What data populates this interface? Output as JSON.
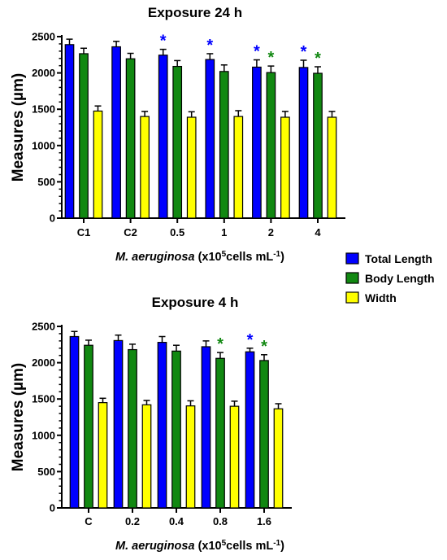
{
  "figure": {
    "legend": {
      "position": "right",
      "entries": [
        {
          "label": "Total Length",
          "color": "#0000ff"
        },
        {
          "label": "Body Length",
          "color": "#118811"
        },
        {
          "label": "Width",
          "color": "#ffff00"
        }
      ]
    }
  },
  "chart_data": [
    {
      "type": "bar",
      "title": "Exposure 24 h",
      "ylabel": "Measures (µm)",
      "xlabel_italic": "M. aeruginosa",
      "xlabel_rest": " (x10",
      "xlabel_sup1": "5",
      "xlabel_mid": "cells mL",
      "xlabel_sup2": "-1",
      "xlabel_end": ")",
      "ylim": [
        0,
        2500
      ],
      "yticks": [
        "0",
        "500",
        "1000",
        "1500",
        "2000",
        "2500"
      ],
      "categories": [
        "C1",
        "C2",
        "0.5",
        "1",
        "2",
        "4"
      ],
      "series": [
        {
          "name": "Total Length",
          "color": "#0000ff",
          "values": [
            2390,
            2360,
            2245,
            2185,
            2080,
            2075
          ],
          "errors": [
            75,
            75,
            80,
            80,
            100,
            100
          ]
        },
        {
          "name": "Body Length",
          "color": "#118811",
          "values": [
            2265,
            2195,
            2090,
            2020,
            2005,
            1995
          ],
          "errors": [
            75,
            75,
            80,
            90,
            90,
            90
          ]
        },
        {
          "name": "Width",
          "color": "#ffff00",
          "values": [
            1475,
            1400,
            1390,
            1400,
            1390,
            1390
          ],
          "errors": [
            70,
            70,
            75,
            80,
            80,
            80
          ]
        }
      ],
      "significance": [
        {
          "category": "0.5",
          "series": "Total Length",
          "symbol": "*"
        },
        {
          "category": "1",
          "series": "Total Length",
          "symbol": "*"
        },
        {
          "category": "2",
          "series": "Total Length",
          "symbol": "*"
        },
        {
          "category": "2",
          "series": "Body Length",
          "symbol": "*"
        },
        {
          "category": "4",
          "series": "Total Length",
          "symbol": "*"
        },
        {
          "category": "4",
          "series": "Body Length",
          "symbol": "*"
        }
      ]
    },
    {
      "type": "bar",
      "title": "Exposure 4 h",
      "ylabel": "Measures (µm)",
      "xlabel_italic": "M. aeruginosa",
      "xlabel_rest": " (x10",
      "xlabel_sup1": "5",
      "xlabel_mid": "cells mL",
      "xlabel_sup2": "-1",
      "xlabel_end": ")",
      "ylim": [
        0,
        2500
      ],
      "yticks": [
        "0",
        "500",
        "1000",
        "1500",
        "2000",
        "2500"
      ],
      "categories": [
        "C",
        "0.2",
        "0.4",
        "0.8",
        "1.6"
      ],
      "series": [
        {
          "name": "Total Length",
          "color": "#0000ff",
          "values": [
            2360,
            2305,
            2280,
            2220,
            2150
          ],
          "errors": [
            70,
            75,
            80,
            80,
            50
          ]
        },
        {
          "name": "Body Length",
          "color": "#118811",
          "values": [
            2240,
            2180,
            2160,
            2060,
            2030
          ],
          "errors": [
            70,
            75,
            80,
            80,
            80
          ]
        },
        {
          "name": "Width",
          "color": "#ffff00",
          "values": [
            1450,
            1420,
            1405,
            1400,
            1365
          ],
          "errors": [
            60,
            60,
            70,
            70,
            70
          ]
        }
      ],
      "significance": [
        {
          "category": "0.8",
          "series": "Body Length",
          "symbol": "*"
        },
        {
          "category": "1.6",
          "series": "Total Length",
          "symbol": "*"
        },
        {
          "category": "1.6",
          "series": "Body Length",
          "symbol": "*"
        }
      ]
    }
  ]
}
